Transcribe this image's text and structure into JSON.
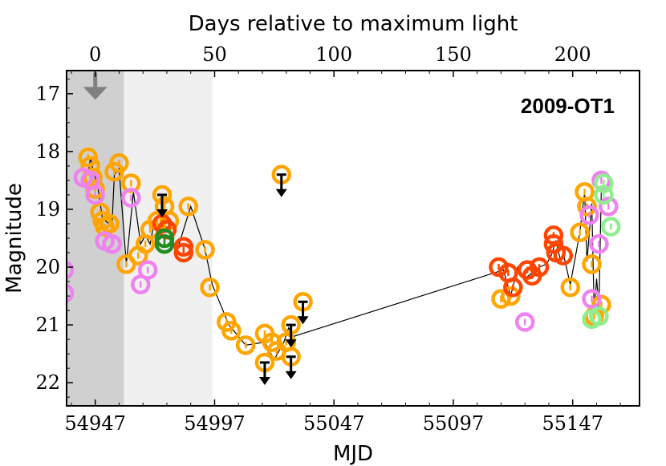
{
  "chart_data": {
    "type": "scatter",
    "title": "2009-OT1",
    "xlabel": "MJD",
    "ylabel": "Magnitude",
    "top_xlabel": "Days relative to maximum light",
    "xlim": [
      54935,
      55175
    ],
    "ylim": [
      22.4,
      16.6
    ],
    "x_ticks": [
      54947,
      54997,
      55047,
      55097,
      55147
    ],
    "x_tick_labels": [
      "54947",
      "54997",
      "55047",
      "55097",
      "55147"
    ],
    "y_ticks": [
      17,
      18,
      19,
      20,
      21,
      22
    ],
    "y_tick_labels": [
      "17",
      "18",
      "19",
      "20",
      "21",
      "22"
    ],
    "max_light_mjd": 54947,
    "top_ticks": [
      0,
      50,
      100,
      150,
      200
    ],
    "top_tick_labels": [
      "0",
      "50",
      "100",
      "150",
      "200"
    ],
    "shaded_regions": [
      {
        "x0": 54935,
        "x1": 54959,
        "color": "#d0d0d0"
      },
      {
        "x0": 54959,
        "x1": 54996,
        "color": "#f0f0f0"
      }
    ],
    "upper_limit_marker": {
      "x": 54947,
      "y": 16.8,
      "color": "#808080"
    },
    "colors": {
      "orange": "#ffa500",
      "orangered": "#ff4500",
      "violet": "#ee82ee",
      "green": "#228b22",
      "lightgreen": "#90ee90"
    },
    "connecting_line": [
      [
        54944,
        18.4
      ],
      [
        54945,
        18.1
      ],
      [
        54946,
        18.3
      ],
      [
        54948,
        18.6
      ],
      [
        54950,
        19.15
      ],
      [
        54954,
        19.3
      ],
      [
        54955,
        18.4
      ],
      [
        54957,
        18.3
      ],
      [
        54960,
        19.95
      ],
      [
        54963,
        18.7
      ],
      [
        54966,
        19.6
      ],
      [
        54968,
        19.45
      ],
      [
        54970,
        19.6
      ],
      [
        54972,
        19.15
      ],
      [
        54973,
        19.2
      ],
      [
        54974,
        19.45
      ],
      [
        54976,
        19.05
      ],
      [
        54978,
        19.3
      ],
      [
        54981,
        19.75
      ],
      [
        54987,
        18.95
      ],
      [
        54993,
        19.7
      ],
      [
        54996,
        20.3
      ],
      [
        55003,
        21.0
      ],
      [
        55010,
        21.35
      ],
      [
        55018,
        21.3
      ],
      [
        55022,
        21.6
      ],
      [
        55026,
        21.3
      ],
      [
        55028,
        21.05
      ],
      [
        55030,
        21.2
      ],
      [
        55118,
        20.05
      ],
      [
        55121,
        20.5
      ],
      [
        55124,
        20.0
      ],
      [
        55127,
        20.2
      ],
      [
        55130,
        20.1
      ],
      [
        55133,
        20.0
      ],
      [
        55136,
        19.95
      ],
      [
        55138,
        19.8
      ],
      [
        55140,
        19.55
      ],
      [
        55142,
        19.9
      ],
      [
        55143,
        19.75
      ],
      [
        55146,
        20.3
      ],
      [
        55148,
        19.85
      ],
      [
        55150,
        19.4
      ],
      [
        55152,
        18.7
      ],
      [
        55153,
        19.9
      ],
      [
        55155,
        18.9
      ],
      [
        55156,
        20.8
      ],
      [
        55157,
        20.2
      ],
      [
        55158,
        20.7
      ],
      [
        55159,
        18.65
      ]
    ],
    "series": [
      {
        "name": "orange",
        "color": "#ffa500",
        "points": [
          [
            54944,
            18.1
          ],
          [
            54945,
            18.25
          ],
          [
            54946,
            18.45
          ],
          [
            54947,
            18.65
          ],
          [
            54949,
            19.05
          ],
          [
            54950,
            19.2
          ],
          [
            54951,
            19.3
          ],
          [
            54953,
            19.25
          ],
          [
            54955,
            18.35
          ],
          [
            54957,
            18.2
          ],
          [
            54960,
            19.95
          ],
          [
            54962,
            18.55
          ],
          [
            54965,
            19.8
          ],
          [
            54968,
            19.6
          ],
          [
            54970,
            19.35
          ],
          [
            54973,
            19.2
          ],
          [
            54976,
            18.95
          ],
          [
            54978,
            19.2
          ],
          [
            54986,
            18.95
          ],
          [
            54993,
            19.7
          ],
          [
            54995,
            20.35
          ],
          [
            55002,
            20.95
          ],
          [
            55004,
            21.1
          ],
          [
            55010,
            21.35
          ],
          [
            55018,
            21.15
          ],
          [
            55021,
            21.3
          ],
          [
            55023,
            21.45
          ],
          [
            55027,
            21.3
          ],
          [
            55117,
            20.55
          ],
          [
            55121,
            20.5
          ],
          [
            55146,
            20.35
          ],
          [
            55150,
            19.4
          ],
          [
            55152,
            18.7
          ],
          [
            55153,
            18.95
          ],
          [
            55155,
            19.95
          ],
          [
            55156,
            20.85
          ],
          [
            55159,
            20.65
          ]
        ]
      },
      {
        "name": "orangered",
        "color": "#ff4500",
        "points": [
          [
            54975,
            19.25
          ],
          [
            54977,
            19.35
          ],
          [
            54984,
            19.65
          ],
          [
            54984,
            19.75
          ],
          [
            55116,
            20.0
          ],
          [
            55120,
            20.1
          ],
          [
            55122,
            20.35
          ],
          [
            55128,
            20.05
          ],
          [
            55130,
            20.15
          ],
          [
            55133,
            20.0
          ],
          [
            55139,
            19.6
          ],
          [
            55139,
            19.45
          ],
          [
            55140,
            19.75
          ],
          [
            55143,
            19.8
          ]
        ]
      },
      {
        "name": "violet",
        "color": "#ee82ee",
        "points": [
          [
            54934,
            20.05
          ],
          [
            54934,
            20.45
          ],
          [
            54942,
            18.45
          ],
          [
            54945,
            18.5
          ],
          [
            54947,
            18.75
          ],
          [
            54951,
            19.55
          ],
          [
            54954,
            19.6
          ],
          [
            54962,
            18.8
          ],
          [
            54966,
            20.3
          ],
          [
            54969,
            20.05
          ],
          [
            55127,
            20.95
          ],
          [
            55154,
            19.1
          ],
          [
            55155,
            20.55
          ],
          [
            55158,
            19.6
          ],
          [
            55159,
            18.5
          ],
          [
            55162,
            18.95
          ]
        ]
      },
      {
        "name": "green",
        "color": "#228b22",
        "points": [
          [
            54976,
            19.5
          ],
          [
            54976,
            19.6
          ]
        ]
      },
      {
        "name": "lightgreen",
        "color": "#90ee90",
        "points": [
          [
            55155,
            20.9
          ],
          [
            55158,
            20.85
          ],
          [
            55160,
            18.55
          ],
          [
            55160,
            18.75
          ],
          [
            55163,
            19.3
          ]
        ]
      }
    ],
    "upper_limits": [
      {
        "x": 54975,
        "y": 18.75,
        "color": "#ffa500"
      },
      {
        "x": 55025,
        "y": 18.4,
        "color": "#ffa500"
      },
      {
        "x": 55018,
        "y": 21.65,
        "color": "#ffa500"
      },
      {
        "x": 55029,
        "y": 21.0,
        "color": "#ffa500"
      },
      {
        "x": 55029,
        "y": 21.55,
        "color": "#ffa500"
      },
      {
        "x": 55034,
        "y": 20.6,
        "color": "#ffa500"
      }
    ]
  }
}
